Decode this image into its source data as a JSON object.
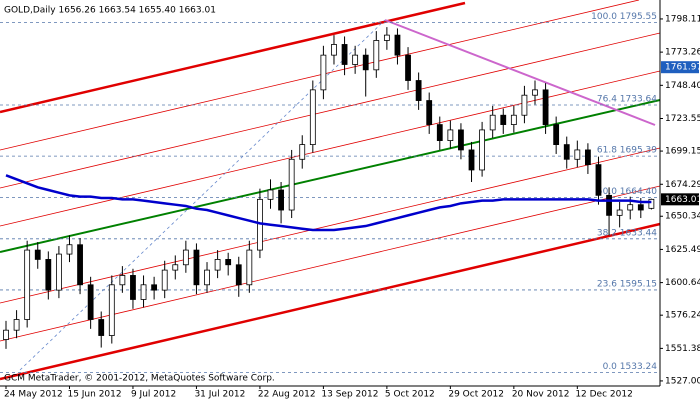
{
  "chart_data": {
    "type": "candlestick",
    "header": "GOLD,Daily  1656.26 1663.54 1655.40 1663.01",
    "footer": "GCM MetaTrader, © 2001-2012, MetaQuotes Software Corp.",
    "x": [
      "24 May 2012",
      null,
      null,
      null,
      null,
      null,
      "15 Jun 2012",
      null,
      null,
      null,
      null,
      null,
      "9 Jul 2012",
      null,
      null,
      null,
      null,
      null,
      "31 Jul 2012",
      null,
      null,
      null,
      null,
      null,
      "22 Aug 2012",
      null,
      null,
      null,
      null,
      null,
      "13 Sep 2012",
      null,
      null,
      null,
      null,
      null,
      "5 Oct 2012",
      null,
      null,
      null,
      null,
      null,
      "29 Oct 2012",
      null,
      null,
      null,
      null,
      null,
      "20 Nov 2012",
      null,
      null,
      null,
      null,
      null,
      "12 Dec 2012",
      null,
      null,
      null,
      null,
      null,
      null,
      null
    ],
    "open": [
      1558,
      1565,
      1573,
      1625,
      1618,
      1595,
      1622,
      1629,
      1599,
      1573,
      1561,
      1599,
      1606,
      1588,
      1599,
      1595,
      1610,
      1614,
      1625,
      1599,
      1610,
      1618,
      1614,
      1599,
      1625,
      1663,
      1670,
      1655,
      1693,
      1704,
      1745,
      1771,
      1779,
      1764,
      1771,
      1760,
      1782,
      1786,
      1771,
      1752,
      1737,
      1719,
      1707,
      1715,
      1700,
      1685,
      1715,
      1726,
      1719,
      1726,
      1741,
      1745,
      1719,
      1704,
      1693,
      1700,
      1689,
      1666,
      1651,
      1655,
      1659,
      1656.26
    ],
    "high": [
      1572,
      1580,
      1632,
      1631,
      1624,
      1628,
      1636,
      1634,
      1605,
      1579,
      1606,
      1613,
      1611,
      1606,
      1605,
      1617,
      1621,
      1632,
      1630,
      1616,
      1625,
      1623,
      1620,
      1632,
      1671,
      1678,
      1676,
      1700,
      1711,
      1752,
      1778,
      1786,
      1785,
      1778,
      1776,
      1789,
      1792,
      1791,
      1777,
      1758,
      1743,
      1725,
      1722,
      1720,
      1706,
      1721,
      1733,
      1731,
      1733,
      1748,
      1752,
      1750,
      1725,
      1710,
      1707,
      1705,
      1695,
      1672,
      1661,
      1665,
      1664,
      1663.54
    ],
    "low": [
      1551,
      1559,
      1567,
      1611,
      1588,
      1589,
      1616,
      1592,
      1566,
      1552,
      1555,
      1593,
      1581,
      1582,
      1588,
      1589,
      1603,
      1608,
      1592,
      1593,
      1604,
      1606,
      1590,
      1593,
      1619,
      1656,
      1645,
      1649,
      1686,
      1698,
      1738,
      1764,
      1756,
      1757,
      1740,
      1754,
      1775,
      1764,
      1745,
      1730,
      1712,
      1700,
      1701,
      1693,
      1676,
      1680,
      1709,
      1712,
      1713,
      1720,
      1734,
      1712,
      1697,
      1686,
      1687,
      1682,
      1659,
      1636,
      1642,
      1648,
      1649,
      1655.4
    ],
    "close": [
      1565,
      1573,
      1625,
      1618,
      1595,
      1622,
      1629,
      1599,
      1573,
      1561,
      1599,
      1606,
      1588,
      1599,
      1595,
      1610,
      1614,
      1625,
      1599,
      1610,
      1618,
      1614,
      1599,
      1625,
      1663,
      1670,
      1655,
      1693,
      1704,
      1745,
      1771,
      1779,
      1764,
      1771,
      1760,
      1782,
      1786,
      1771,
      1752,
      1737,
      1719,
      1707,
      1715,
      1700,
      1685,
      1715,
      1726,
      1719,
      1726,
      1741,
      1745,
      1719,
      1704,
      1693,
      1700,
      1689,
      1666,
      1651,
      1655,
      1659,
      1655,
      1663.01
    ],
    "ma": {
      "color": "#0000cc",
      "values": [
        1681,
        1678,
        1675,
        1672,
        1670,
        1668,
        1666,
        1665,
        1665,
        1664,
        1664,
        1663,
        1663,
        1662,
        1661,
        1660,
        1659,
        1658,
        1656,
        1655,
        1653,
        1651,
        1649,
        1647,
        1645,
        1644,
        1643,
        1642,
        1641,
        1640,
        1640,
        1640,
        1641,
        1642,
        1643,
        1645,
        1647,
        1649,
        1651,
        1653,
        1655,
        1657,
        1658,
        1660,
        1661,
        1662,
        1662,
        1663,
        1663,
        1663,
        1663,
        1663,
        1663,
        1663,
        1663,
        1663,
        1662,
        1662,
        1662,
        1662,
        1661,
        1661
      ]
    },
    "fib_levels": [
      {
        "value": 1795.55,
        "label": "100.0 1795.55"
      },
      {
        "value": 1733.64,
        "label": "76.4 1733.64"
      },
      {
        "value": 1695.39,
        "label": "61.8 1695.39"
      },
      {
        "value": 1664.4,
        "label": "50.0 1664.40"
      },
      {
        "value": 1633.44,
        "label": "38.2 1633.44"
      },
      {
        "value": 1595.15,
        "label": "23.6 1595.15"
      },
      {
        "value": 1533.24,
        "label": "0.0 1533.24"
      }
    ],
    "price_markers": [
      {
        "value": 1761.97,
        "color": "#1f5fbf"
      },
      {
        "value": 1663.01,
        "color": "#000000"
      }
    ],
    "ylim": [
      1523.2,
      1812.3
    ],
    "yticks": [
      1798.11,
      1773.26,
      {
        "value": 1748.4,
        "label": "1748.40"
      },
      1723.55,
      1699.15,
      1674.29,
      1650.34,
      1625.49,
      1600.64,
      1576.24,
      1551.38,
      {
        "value": 1527.0,
        "label": "1527.00"
      }
    ],
    "grid": false
  }
}
